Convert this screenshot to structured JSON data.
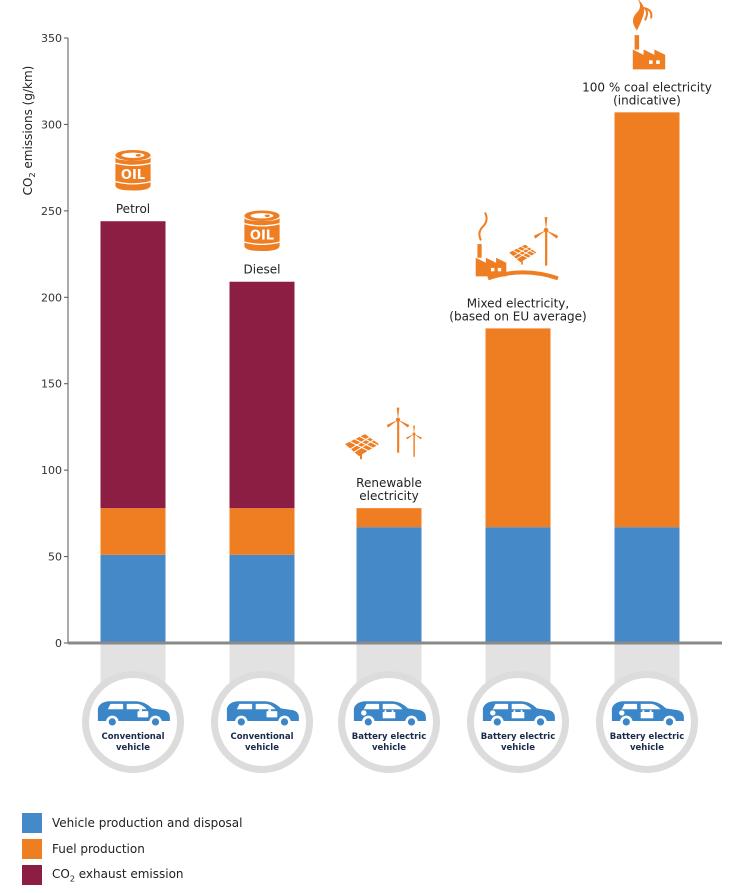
{
  "chart_data": {
    "type": "stacked-bar",
    "ylabel": "CO2 emissions (g/km)",
    "ylabel_parts": {
      "before": "CO",
      "sub": "2",
      "after": " emissions (g/km)"
    },
    "ylim": [
      0,
      350
    ],
    "yticks": [
      0,
      50,
      100,
      150,
      200,
      250,
      300,
      350
    ],
    "categories": [
      "Conventional vehicle (Petrol)",
      "Conventional vehicle (Diesel)",
      "Battery electric vehicle (Renewable electricity)",
      "Battery electric vehicle (Mixed electricity)",
      "Battery electric vehicle (100 % coal electricity)"
    ],
    "series": [
      {
        "name": "Vehicle production and disposal",
        "color": "#4589c8",
        "values": [
          51,
          51,
          67,
          67,
          67
        ]
      },
      {
        "name": "Fuel production",
        "color": "#ef7d22",
        "values": [
          27,
          27,
          11,
          115,
          240
        ]
      },
      {
        "name": "CO2 exhaust emission",
        "color": "#8b1e42",
        "values": [
          166,
          131,
          0,
          0,
          0
        ]
      }
    ],
    "bar_labels": [
      [
        "Petrol"
      ],
      [
        "Diesel"
      ],
      [
        "Renewable",
        "electricity"
      ],
      [
        "Mixed electricity,",
        "(based on EU average)"
      ],
      [
        "100 % coal electricity",
        "(indicative)"
      ]
    ],
    "vehicle_labels": [
      [
        "Conventional",
        "vehicle"
      ],
      [
        "Conventional",
        "vehicle"
      ],
      [
        "Battery electric",
        "vehicle"
      ],
      [
        "Battery electric",
        "vehicle"
      ],
      [
        "Battery electric",
        "vehicle"
      ]
    ],
    "icons": [
      "oil-barrel-icon",
      "oil-barrel-icon",
      "renewable-icon",
      "mixed-electricity-icon",
      "coal-factory-icon"
    ],
    "oil_text": "OIL"
  },
  "legend": [
    {
      "label": "Vehicle production and disposal",
      "color": "#4589c8"
    },
    {
      "label": "Fuel production",
      "color": "#ef7d22"
    },
    {
      "label_before": "CO",
      "label_sub": "2",
      "label_after": " exhaust emission",
      "color": "#8b1e42"
    }
  ]
}
